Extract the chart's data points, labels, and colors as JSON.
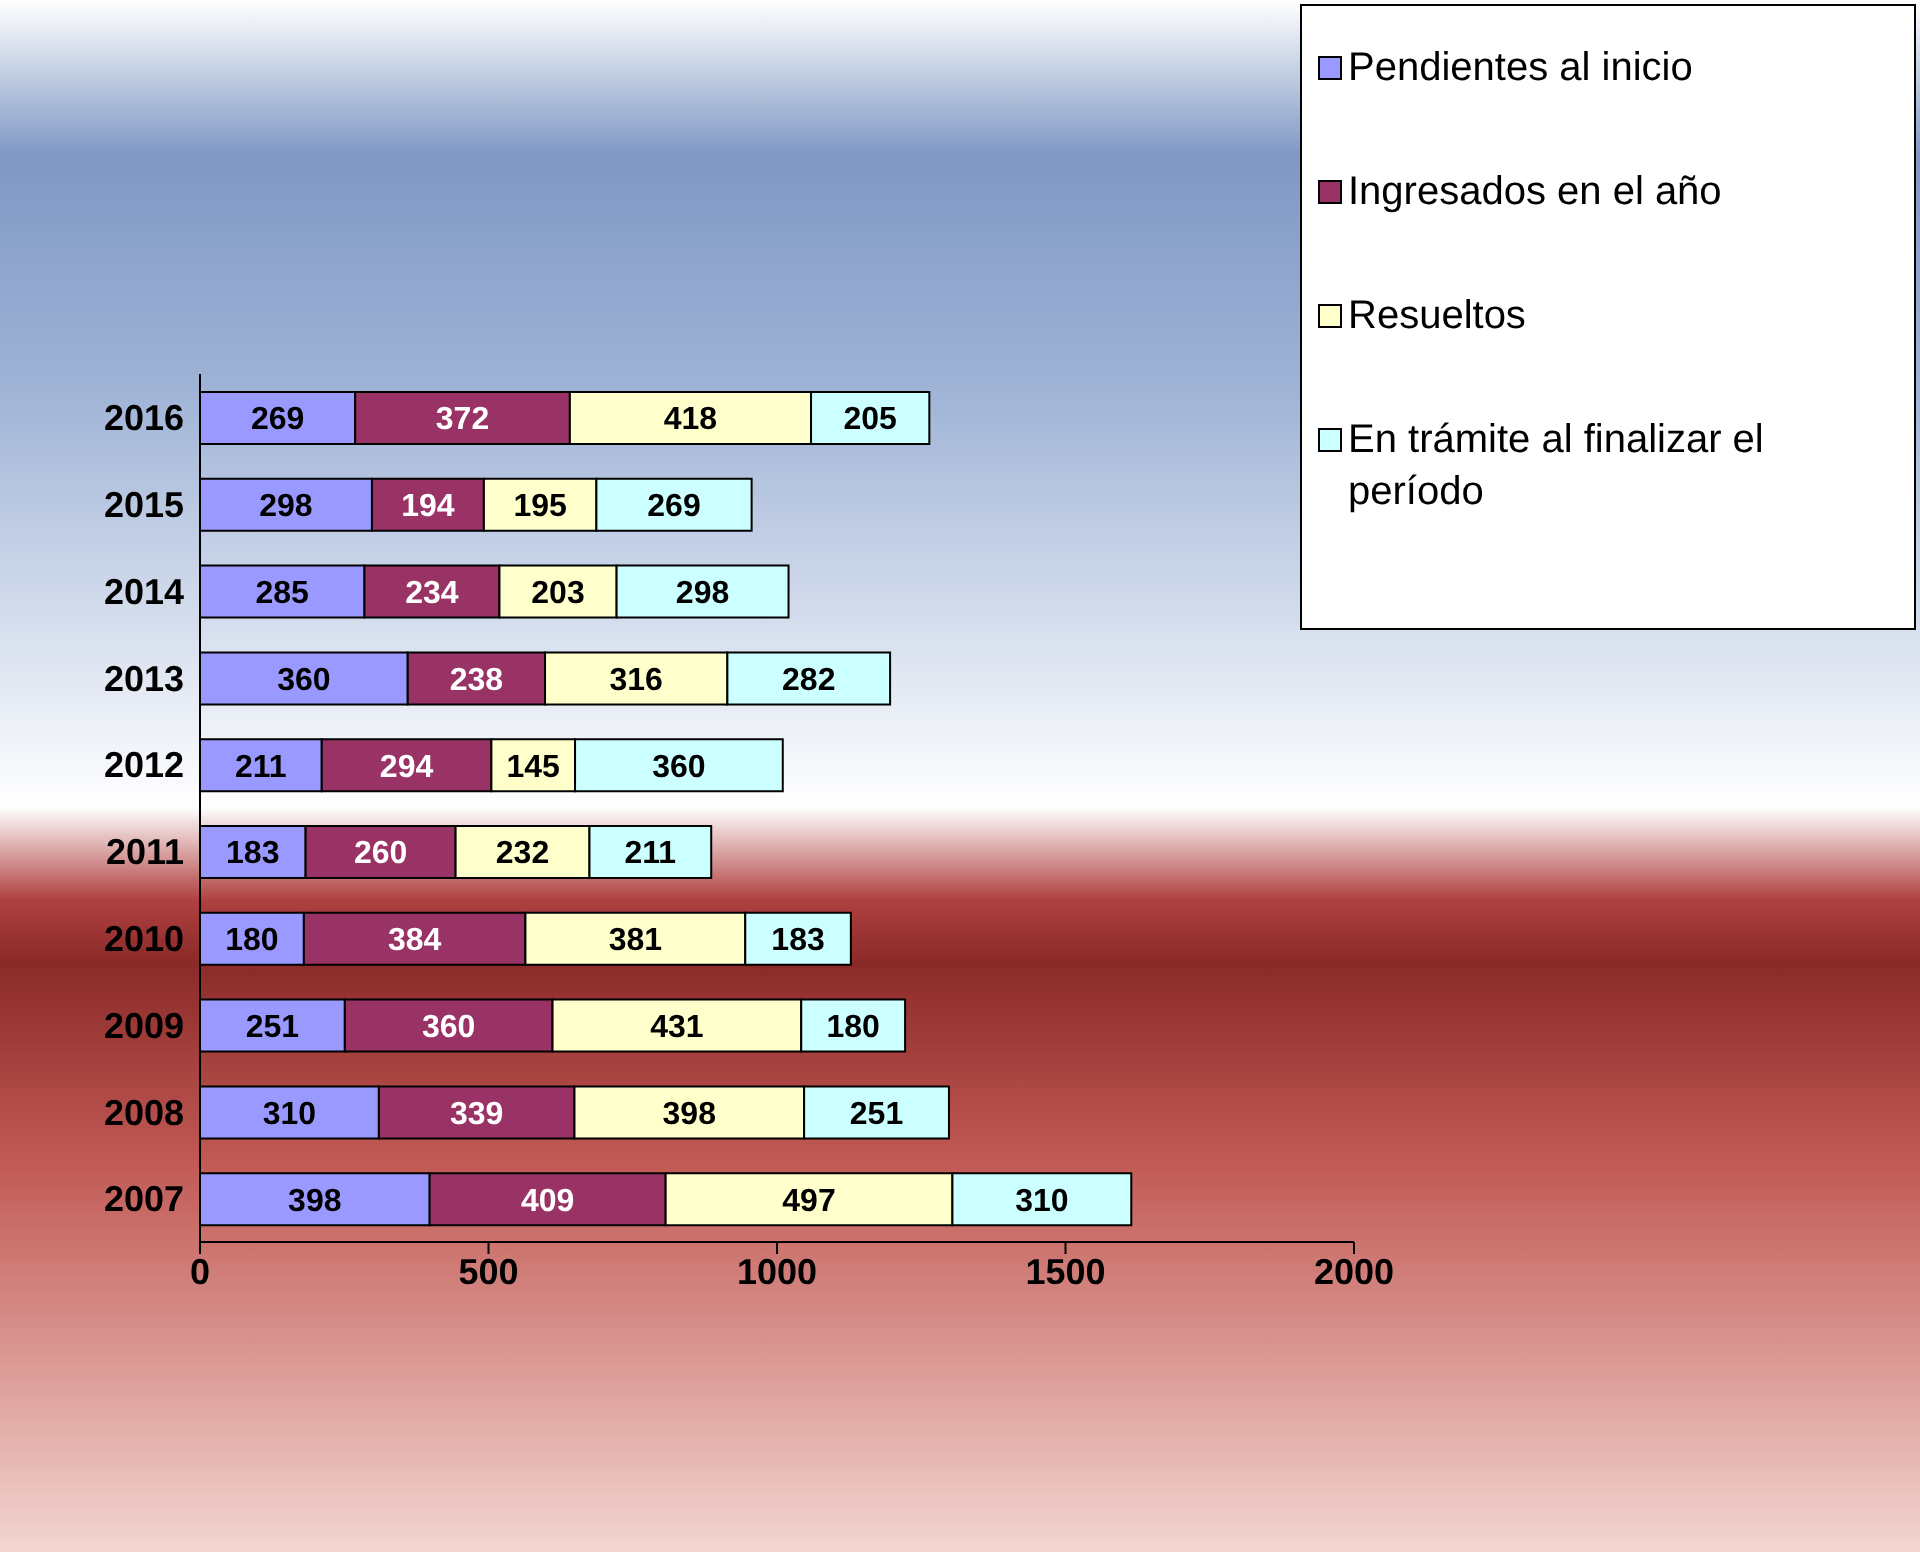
{
  "chart_data": {
    "type": "bar",
    "orientation": "horizontal",
    "stacked": true,
    "data_labels": true,
    "legend": "top right",
    "grid": false,
    "categories": [
      "2016",
      "2015",
      "2014",
      "2013",
      "2012",
      "2011",
      "2010",
      "2009",
      "2008",
      "2007"
    ],
    "series": [
      {
        "name": "Pendientes al inicio",
        "color": "#9999ff",
        "values": [
          269,
          298,
          285,
          360,
          211,
          183,
          180,
          251,
          310,
          398
        ]
      },
      {
        "name": "Ingresados en el año",
        "color": "#993366",
        "values": [
          372,
          194,
          234,
          238,
          294,
          260,
          384,
          360,
          339,
          409
        ]
      },
      {
        "name": "Resueltos",
        "color": "#ffffcc",
        "values": [
          418,
          195,
          203,
          316,
          145,
          232,
          381,
          431,
          398,
          497
        ]
      },
      {
        "name": "En trámite al finalizar el período",
        "color": "#ccffff",
        "values": [
          205,
          269,
          298,
          282,
          360,
          211,
          183,
          180,
          251,
          310
        ]
      }
    ],
    "xlim": [
      0,
      2000
    ],
    "xticks": [
      0,
      500,
      1000,
      1500,
      2000
    ]
  }
}
